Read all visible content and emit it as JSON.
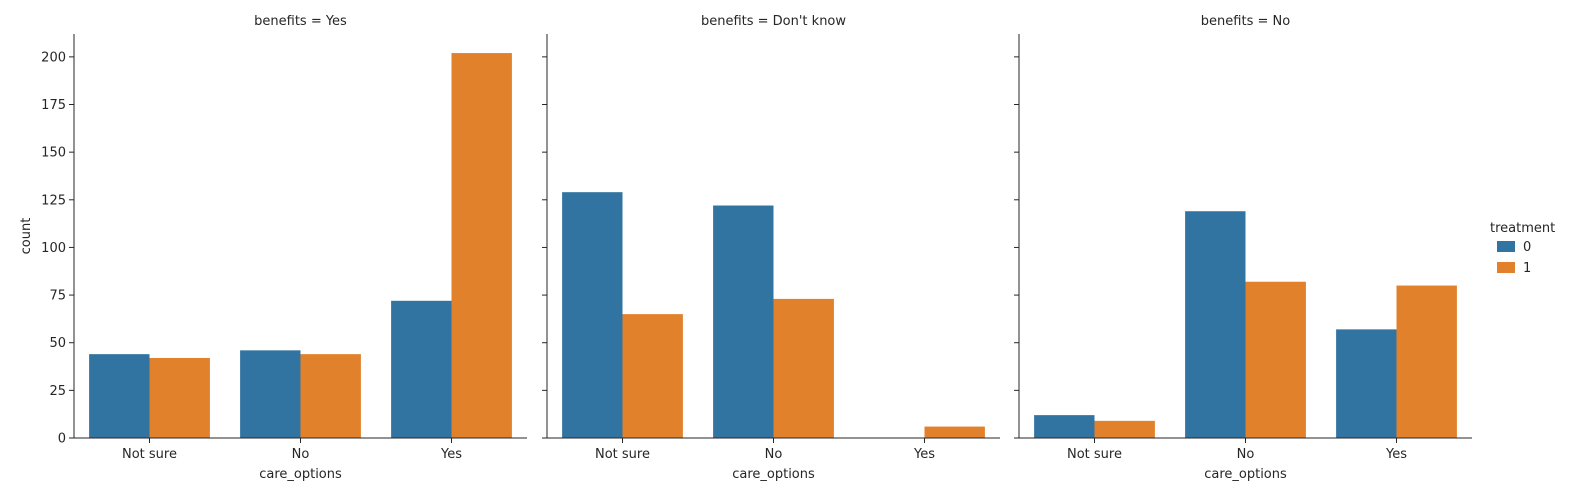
{
  "chart_data": [
    {
      "type": "bar",
      "title": "benefits = Yes",
      "xlabel": "care_options",
      "ylabel": "count",
      "categories": [
        "Not sure",
        "No",
        "Yes"
      ],
      "ylim": [
        0,
        212
      ],
      "yticks": [
        0,
        25,
        50,
        75,
        100,
        125,
        150,
        175,
        200
      ],
      "series": [
        {
          "name": "0",
          "values": [
            44,
            46,
            72
          ]
        },
        {
          "name": "1",
          "values": [
            42,
            44,
            202
          ]
        }
      ]
    },
    {
      "type": "bar",
      "title": "benefits = Don't know",
      "xlabel": "care_options",
      "ylabel": "",
      "categories": [
        "Not sure",
        "No",
        "Yes"
      ],
      "ylim": [
        0,
        212
      ],
      "yticks": [
        0,
        25,
        50,
        75,
        100,
        125,
        150,
        175,
        200
      ],
      "series": [
        {
          "name": "0",
          "values": [
            129,
            122,
            0
          ]
        },
        {
          "name": "1",
          "values": [
            65,
            73,
            6
          ]
        }
      ]
    },
    {
      "type": "bar",
      "title": "benefits = No",
      "xlabel": "care_options",
      "ylabel": "",
      "categories": [
        "Not sure",
        "No",
        "Yes"
      ],
      "ylim": [
        0,
        212
      ],
      "yticks": [
        0,
        25,
        50,
        75,
        100,
        125,
        150,
        175,
        200
      ],
      "series": [
        {
          "name": "0",
          "values": [
            12,
            119,
            57
          ]
        },
        {
          "name": "1",
          "values": [
            9,
            82,
            80
          ]
        }
      ]
    }
  ],
  "legend": {
    "title": "treatment",
    "placement": "right",
    "entries": [
      {
        "label": "0",
        "color": "#3274a1"
      },
      {
        "label": "1",
        "color": "#e1812c"
      }
    ]
  },
  "colors": {
    "series0": "#3274a1",
    "series1": "#e1812c",
    "axis": "#262626"
  }
}
